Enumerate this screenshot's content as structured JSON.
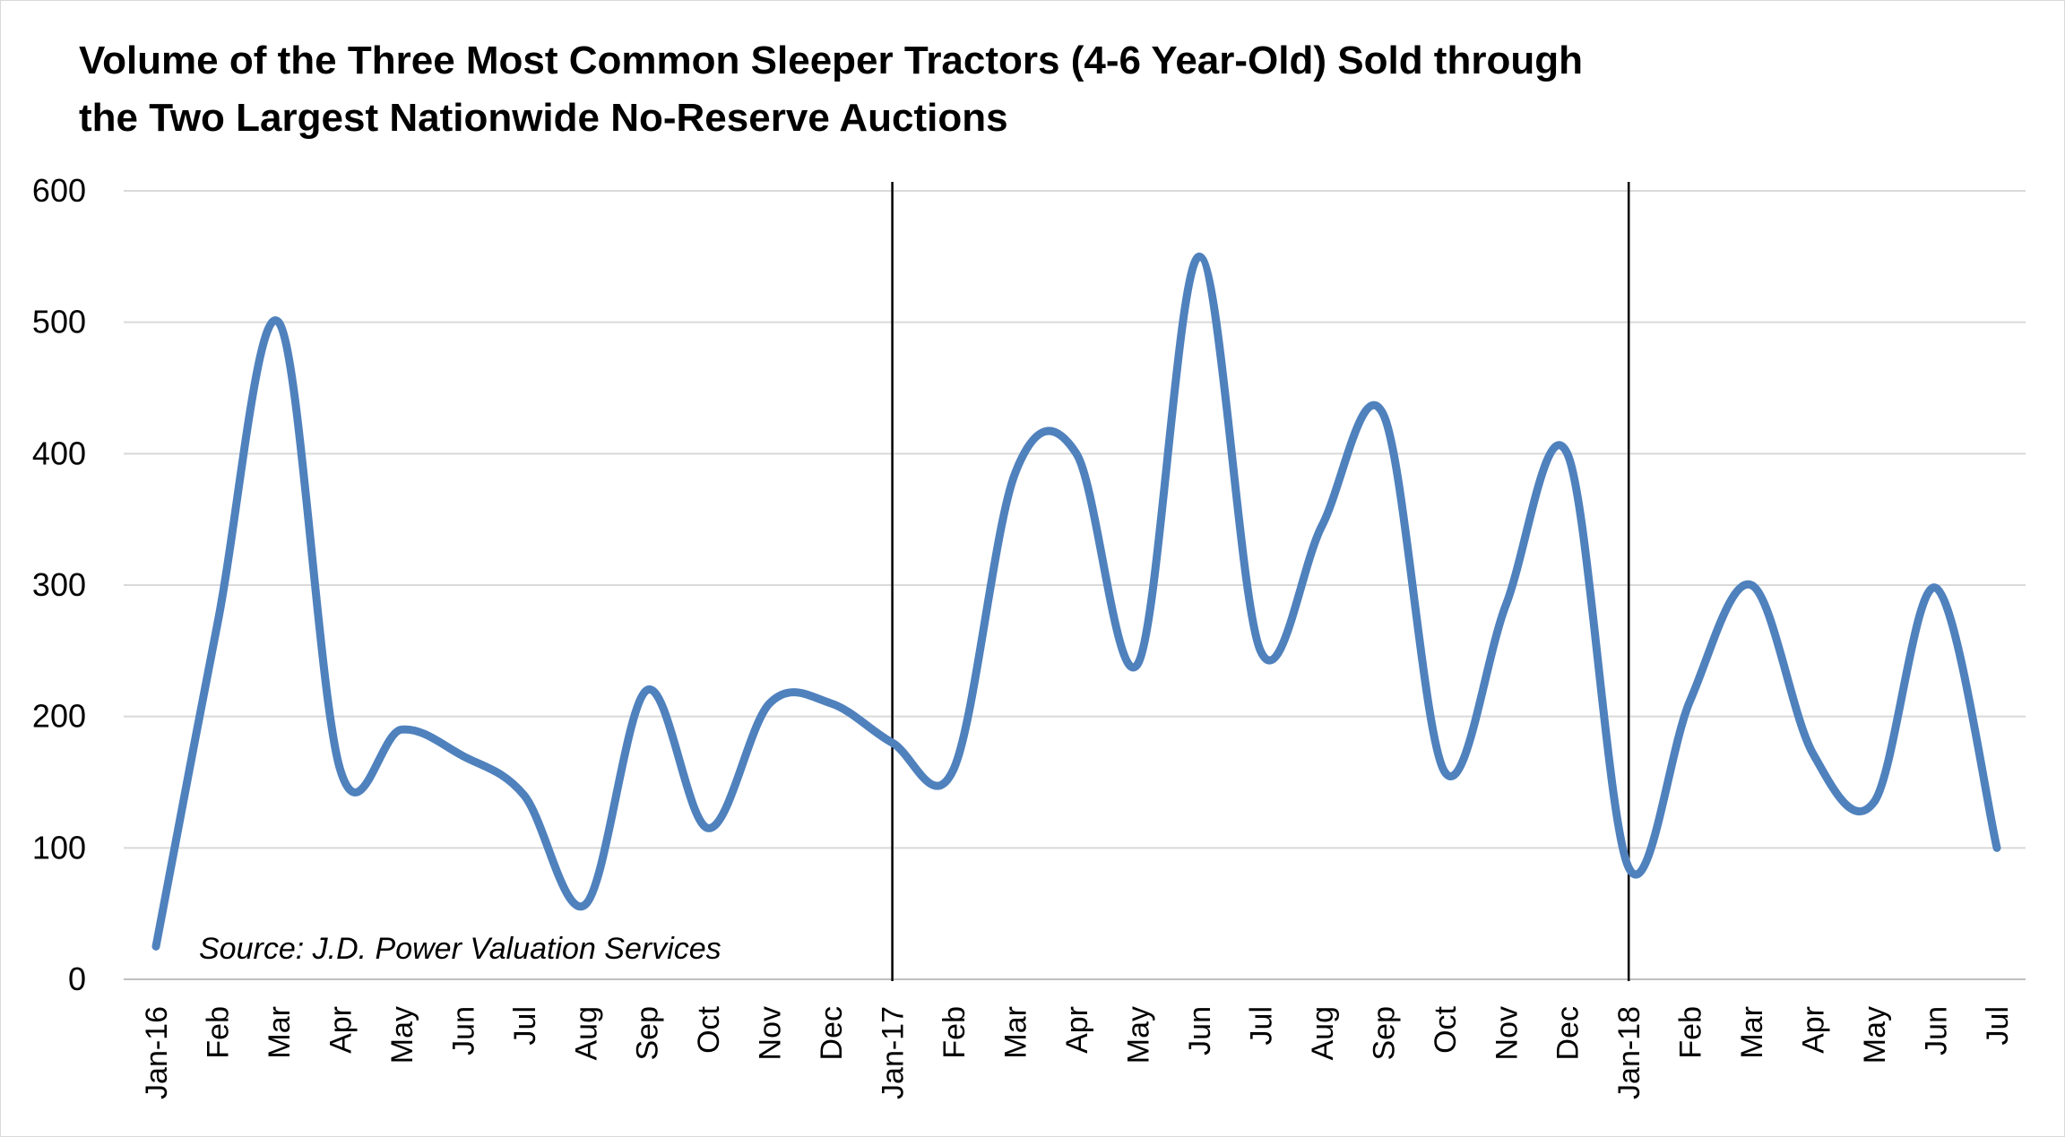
{
  "chart_data": {
    "type": "line",
    "title": "Volume of the Three Most Common Sleeper Tractors (4-6 Year-Old) Sold through the Two Largest Nationwide No-Reserve Auctions",
    "title_lines": [
      "Volume of the Three Most Common Sleeper Tractors (4-6 Year-Old) Sold through",
      "the Two Largest Nationwide No-Reserve Auctions"
    ],
    "xlabel": "",
    "ylabel": "",
    "ylim": [
      0,
      600
    ],
    "yticks": [
      "0",
      "100",
      "200",
      "300",
      "400",
      "500",
      "600"
    ],
    "categories": [
      "Jan-16",
      "Feb",
      "Mar",
      "Apr",
      "May",
      "Jun",
      "Jul",
      "Aug",
      "Sep",
      "Oct",
      "Nov",
      "Dec",
      "Jan-17",
      "Feb",
      "Mar",
      "Apr",
      "May",
      "Jun",
      "Jul",
      "Aug",
      "Sep",
      "Oct",
      "Nov",
      "Dec",
      "Jan-18",
      "Feb",
      "Mar",
      "Apr",
      "May",
      "Jun",
      "Jul"
    ],
    "series": [
      {
        "values": [
          25,
          270,
          500,
          160,
          190,
          170,
          140,
          57,
          220,
          115,
          210,
          210,
          180,
          160,
          385,
          400,
          240,
          550,
          250,
          345,
          430,
          158,
          285,
          400,
          85,
          212,
          300,
          172,
          135,
          298,
          100
        ]
      }
    ],
    "vertical_markers": [
      "Jan-17",
      "Jan-18"
    ],
    "grid": true,
    "line_color": "#4f81bd",
    "annotation": "Source: J.D. Power Valuation Services"
  }
}
